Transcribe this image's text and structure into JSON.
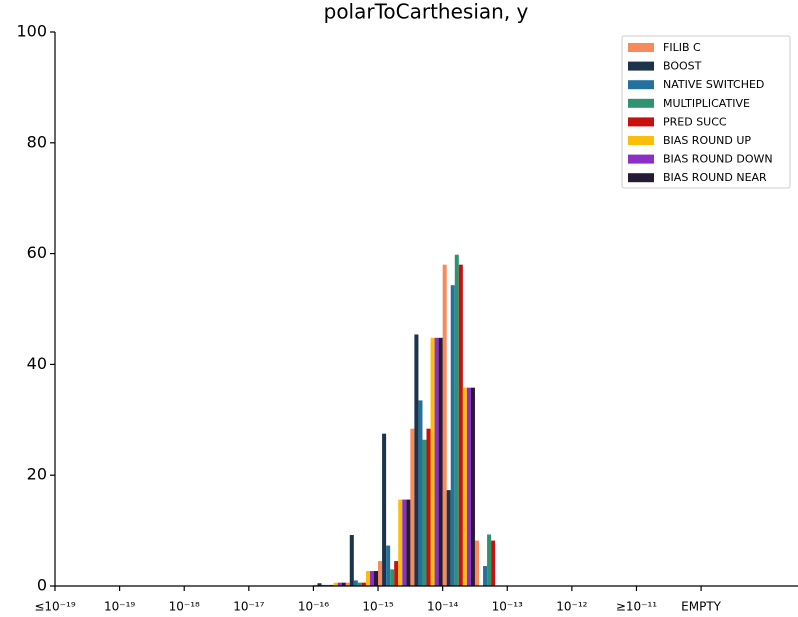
{
  "chart_data": {
    "type": "bar",
    "title": "polarToCarthesian, y",
    "categories": [
      "≤10⁻¹⁹",
      null,
      "10⁻¹⁹",
      null,
      "10⁻¹⁸",
      null,
      "10⁻¹⁷",
      null,
      "10⁻¹⁶",
      null,
      "10⁻¹⁵",
      null,
      "10⁻¹⁴",
      null,
      "10⁻¹³",
      null,
      "10⁻¹²",
      null,
      "≥10⁻¹¹",
      null,
      "EMPTY",
      null,
      null
    ],
    "series": [
      {
        "name": "FILIB C",
        "color": "#f88a5c",
        "values": [
          0,
          0,
          0,
          0,
          0,
          0,
          0,
          0,
          0.2,
          0.6,
          4.5,
          28.4,
          58,
          8.2,
          0,
          0,
          0,
          0,
          0,
          0,
          0,
          0,
          0
        ]
      },
      {
        "name": "BOOST",
        "color": "#1d3349",
        "values": [
          0,
          0,
          0,
          0,
          0,
          0,
          0,
          0,
          0.5,
          9.2,
          27.5,
          45.4,
          17.3,
          0,
          0,
          0,
          0,
          0,
          0,
          0,
          0,
          0,
          0
        ]
      },
      {
        "name": "NATIVE SWITCHED",
        "color": "#23729e",
        "values": [
          0,
          0,
          0,
          0,
          0,
          0,
          0,
          0,
          0.2,
          1,
          7.3,
          33.5,
          54.3,
          3.6,
          0,
          0,
          0,
          0,
          0,
          0,
          0,
          0,
          0
        ]
      },
      {
        "name": "MULTIPLICATIVE",
        "color": "#2e9470",
        "values": [
          0,
          0,
          0,
          0,
          0,
          0,
          0,
          0,
          0.2,
          0.6,
          3,
          26.4,
          59.8,
          9.3,
          0,
          0,
          0,
          0,
          0,
          0,
          0,
          0,
          0
        ]
      },
      {
        "name": "PRED SUCC",
        "color": "#c8100f",
        "values": [
          0,
          0,
          0,
          0,
          0,
          0,
          0,
          0,
          0.2,
          0.6,
          4.5,
          28.4,
          58,
          8.2,
          0,
          0,
          0,
          0,
          0,
          0,
          0,
          0,
          0
        ]
      },
      {
        "name": "BIAS ROUND UP",
        "color": "#fbbf0a",
        "values": [
          0,
          0,
          0,
          0,
          0,
          0,
          0,
          0,
          0.6,
          2.7,
          15.6,
          44.8,
          35.8,
          0,
          0,
          0,
          0,
          0,
          0,
          0,
          0,
          0,
          0
        ]
      },
      {
        "name": "BIAS ROUND DOWN",
        "color": "#8b2fc6",
        "values": [
          0,
          0,
          0,
          0,
          0,
          0,
          0,
          0,
          0.6,
          2.7,
          15.6,
          44.8,
          35.8,
          0,
          0,
          0,
          0,
          0,
          0,
          0,
          0,
          0,
          0
        ]
      },
      {
        "name": "BIAS ROUND NEAR",
        "color": "#271a33",
        "values": [
          0,
          0,
          0,
          0,
          0,
          0,
          0,
          0,
          0.6,
          2.7,
          15.6,
          44.8,
          35.8,
          0,
          0,
          0,
          0,
          0,
          0,
          0,
          0,
          0,
          0
        ]
      }
    ],
    "ylim": [
      0,
      100
    ],
    "yticks": [
      0,
      20,
      40,
      60,
      80,
      100
    ],
    "grid": false,
    "legend": "upper right"
  }
}
